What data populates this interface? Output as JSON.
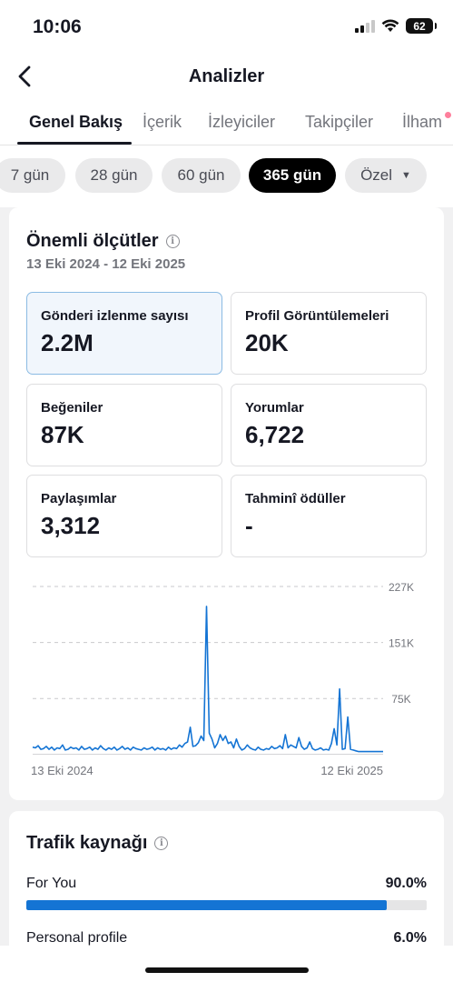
{
  "status": {
    "time": "10:06",
    "battery": "62"
  },
  "header": {
    "title": "Analizler"
  },
  "tabs": [
    "Genel Bakış",
    "İçerik",
    "İzleyiciler",
    "Takipçiler",
    "İlham"
  ],
  "chips": [
    "7 gün",
    "28 gün",
    "60 gün",
    "365 gün",
    "Özel"
  ],
  "metrics": {
    "title": "Önemli ölçütler",
    "date_range": "13 Eki 2024 - 12 Eki 2025",
    "items": [
      {
        "label": "Gönderi izlenme sayısı",
        "value": "2.2M"
      },
      {
        "label": "Profil Görüntülemeleri",
        "value": "20K"
      },
      {
        "label": "Beğeniler",
        "value": "87K"
      },
      {
        "label": "Yorumlar",
        "value": "6,722"
      },
      {
        "label": "Paylaşımlar",
        "value": "3,312"
      },
      {
        "label": "Tahminî ödüller",
        "value": "-"
      }
    ]
  },
  "chart_data": {
    "type": "line",
    "x_start": "13 Eki 2024",
    "x_end": "12 Eki 2025",
    "y_ticks": [
      "227K",
      "151K",
      "75K"
    ],
    "y_tick_values": [
      227000,
      151000,
      75000
    ],
    "ylim": [
      0,
      227000
    ],
    "series": [
      {
        "color": "#1474d4",
        "values": [
          9000,
          8000,
          11000,
          6000,
          7000,
          10000,
          6000,
          9000,
          5000,
          8000,
          7000,
          12000,
          5000,
          6000,
          9000,
          7000,
          8000,
          5000,
          10000,
          6000,
          7000,
          9000,
          5000,
          8000,
          6000,
          11000,
          7000,
          5000,
          8000,
          6000,
          9000,
          5000,
          7000,
          10000,
          6000,
          8000,
          5000,
          9000,
          7000,
          6000,
          5000,
          8000,
          6000,
          7000,
          9000,
          5000,
          8000,
          6000,
          7000,
          5000,
          9000,
          6000,
          8000,
          7000,
          12000,
          9000,
          14000,
          16000,
          36000,
          10000,
          11000,
          15000,
          24000,
          18000,
          200000,
          28000,
          20000,
          8000,
          14000,
          26000,
          18000,
          24000,
          14000,
          16000,
          8000,
          20000,
          10000,
          5000,
          7000,
          12000,
          8000,
          6000,
          5000,
          9000,
          6000,
          5000,
          7000,
          6000,
          10000,
          7000,
          8000,
          11000,
          7000,
          26000,
          8000,
          12000,
          10000,
          8000,
          22000,
          10000,
          6000,
          8000,
          16000,
          7000,
          5000,
          6000,
          8000,
          5000,
          6000,
          5000,
          14000,
          34000,
          12000,
          88000,
          6000,
          7000,
          50000,
          6000,
          5000,
          4000,
          3000,
          3000,
          3000,
          3000,
          3000,
          3000,
          3000,
          3000,
          3000,
          3000
        ]
      }
    ]
  },
  "traffic": {
    "title": "Trafik kaynağı",
    "items": [
      {
        "name": "For You",
        "percent": "90.0%",
        "fraction": 0.9
      },
      {
        "name": "Personal profile",
        "percent": "6.0%",
        "fraction": 0.06
      }
    ]
  }
}
